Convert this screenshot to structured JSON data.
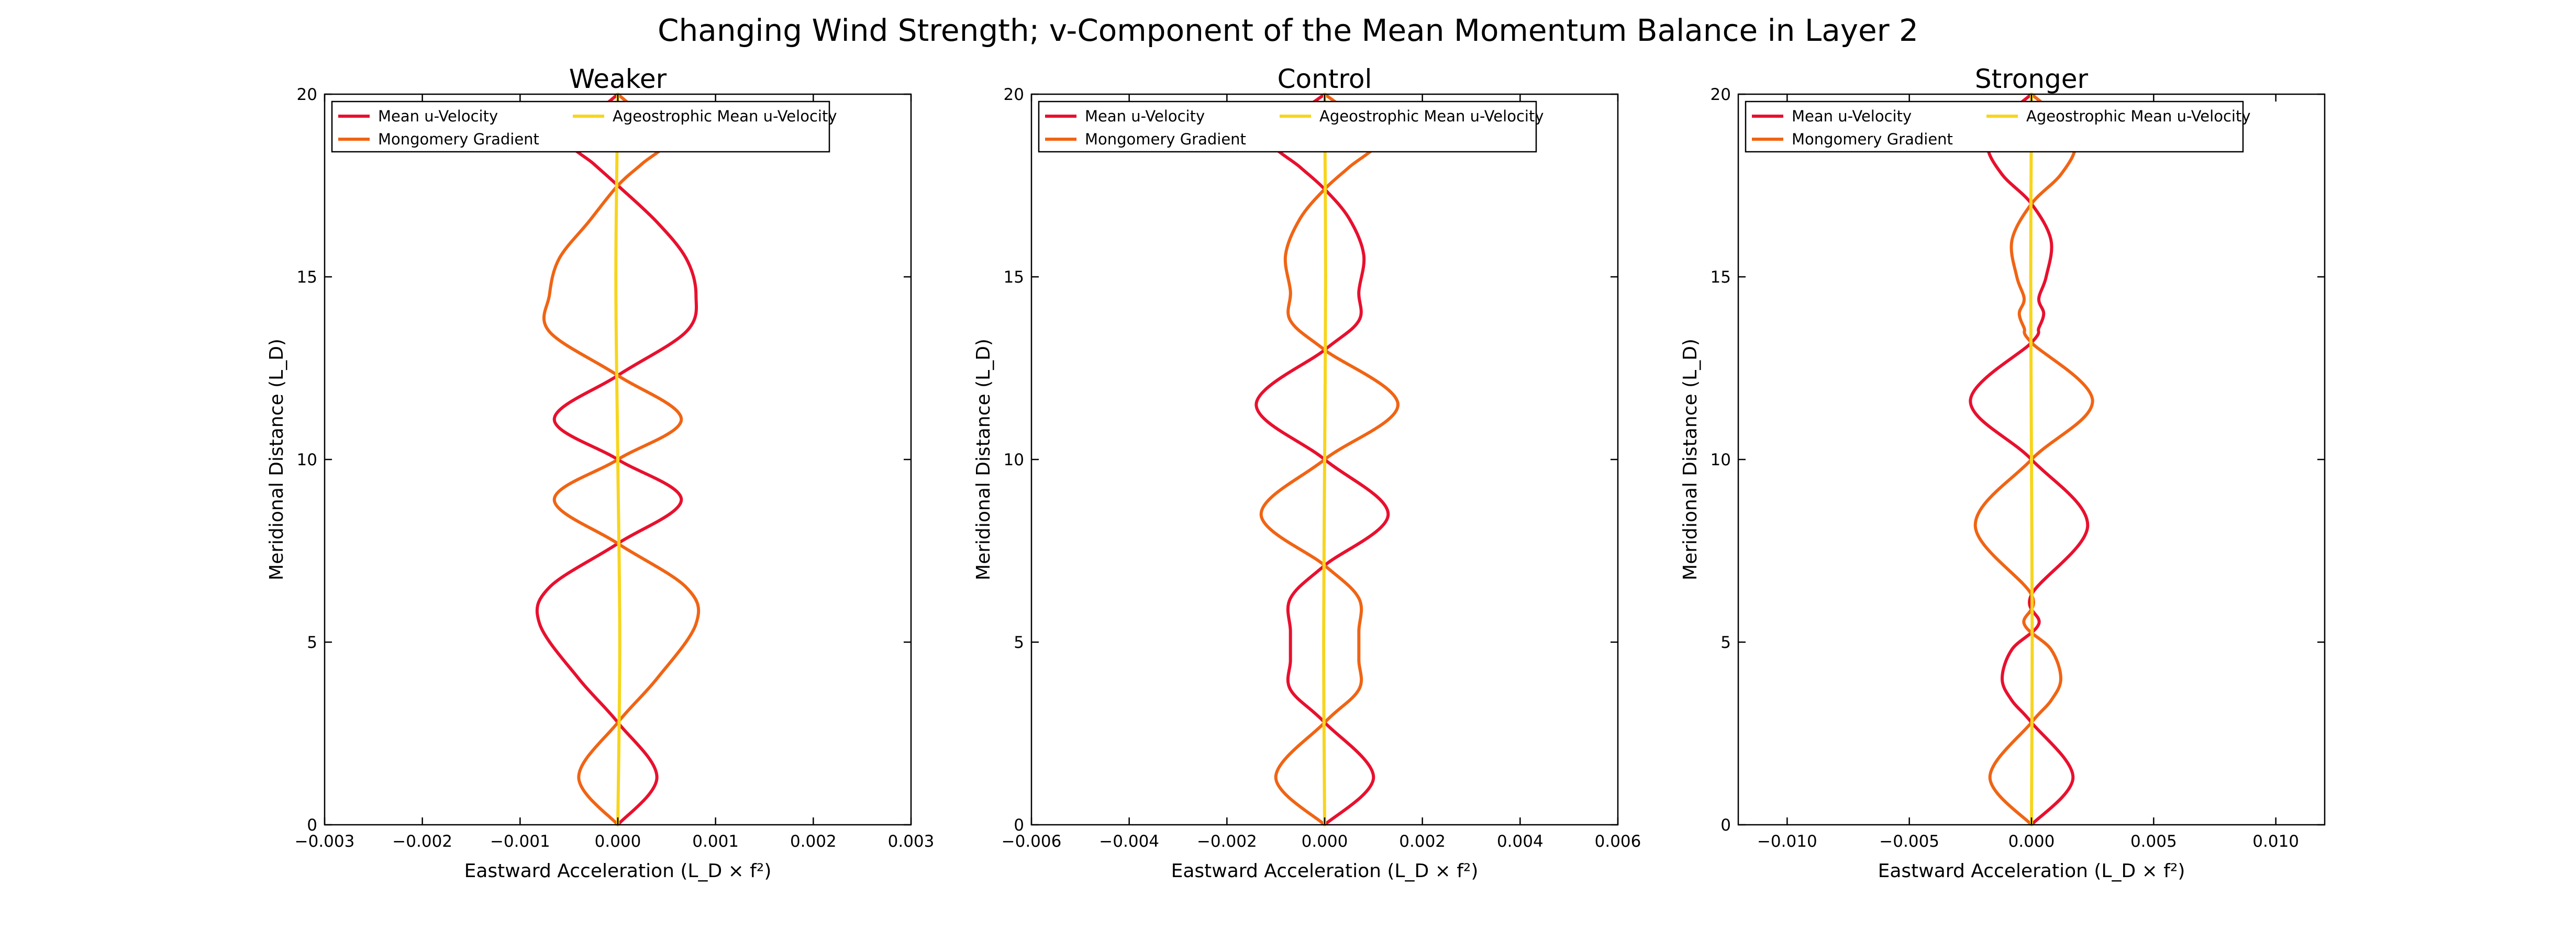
{
  "suptitle": "Changing Wind Strength; v-Component of the Mean Momentum Balance in Layer 2",
  "colors": {
    "mean_u": "#e8102e",
    "montgomery": "#f06414",
    "ageostrophic": "#f7d51d"
  },
  "chart_data": [
    {
      "type": "line",
      "title": "Weaker",
      "xlabel": "Eastward Acceleration (L_D × f²)",
      "ylabel": "Meridional Distance (L_D)",
      "xlim": [
        -0.003,
        0.003
      ],
      "ylim": [
        0,
        20
      ],
      "xticks": [
        "−0.003",
        "−0.002",
        "−0.001",
        "0.000",
        "0.001",
        "0.002",
        "0.003"
      ],
      "yticks": [
        "0",
        "5",
        "10",
        "15",
        "20"
      ],
      "legend": {
        "position": "top-left",
        "columns": 2
      },
      "series": [
        {
          "name": "Mean u-Velocity",
          "color": "#e8102e",
          "y": [
            0,
            1.3,
            2.8,
            4.0,
            5.5,
            6.5,
            7.7,
            8.9,
            10.0,
            11.1,
            12.3,
            13.5,
            14.5,
            15.5,
            16.5,
            17.5,
            18.1,
            18.7,
            19.3,
            20.0
          ],
          "x": [
            0,
            0.0004,
            0,
            -0.0004,
            -0.0008,
            -0.0007,
            0,
            0.00065,
            0,
            -0.00065,
            0,
            0.0007,
            0.0008,
            0.0007,
            0.0004,
            0,
            -0.00025,
            -0.0005,
            -0.0003,
            0
          ]
        },
        {
          "name": "Mongomery Gradient",
          "color": "#f06414",
          "y": [
            0,
            1.3,
            2.8,
            4.0,
            5.5,
            6.5,
            7.7,
            8.9,
            10.0,
            11.1,
            12.3,
            13.5,
            14.5,
            15.5,
            16.5,
            17.5,
            18.1,
            18.7,
            19.3,
            20.0
          ],
          "x": [
            0,
            -0.0004,
            0,
            0.0004,
            0.0008,
            0.0007,
            0,
            -0.00065,
            0,
            0.00065,
            0,
            -0.0007,
            -0.0007,
            -0.0006,
            -0.0003,
            0,
            0.00025,
            0.0005,
            0.0003,
            0
          ]
        },
        {
          "name": "Ageostrophic Mean u-Velocity",
          "color": "#f7d51d",
          "y": [
            0,
            5,
            10,
            15,
            20
          ],
          "x": [
            0,
            2e-05,
            0,
            -2e-05,
            0
          ]
        }
      ]
    },
    {
      "type": "line",
      "title": "Control",
      "xlabel": "Eastward Acceleration (L_D × f²)",
      "ylabel": "Meridional Distance (L_D)",
      "xlim": [
        -0.006,
        0.006
      ],
      "ylim": [
        0,
        20
      ],
      "xticks": [
        "−0.006",
        "−0.004",
        "−0.002",
        "0.000",
        "0.002",
        "0.004",
        "0.006"
      ],
      "yticks": [
        "0",
        "5",
        "10",
        "15",
        "20"
      ],
      "legend": {
        "position": "top-left",
        "columns": 2
      },
      "series": [
        {
          "name": "Mean u-Velocity",
          "color": "#e8102e",
          "y": [
            0,
            1.3,
            2.8,
            3.7,
            4.5,
            5.3,
            6.2,
            7.1,
            8.5,
            10.0,
            11.5,
            13.0,
            13.8,
            14.6,
            15.6,
            16.6,
            17.4,
            18.0,
            18.7,
            19.3,
            20.0
          ],
          "x": [
            0,
            0.001,
            0,
            -0.0007,
            -0.0007,
            -0.0007,
            -0.0007,
            0,
            0.0013,
            0,
            -0.0014,
            0,
            0.0007,
            0.0007,
            0.0008,
            0.0005,
            0,
            -0.0005,
            -0.0011,
            -0.0007,
            0
          ]
        },
        {
          "name": "Mongomery Gradient",
          "color": "#f06414",
          "y": [
            0,
            1.3,
            2.8,
            3.7,
            4.5,
            5.3,
            6.2,
            7.1,
            8.5,
            10.0,
            11.5,
            13.0,
            13.8,
            14.6,
            15.6,
            16.6,
            17.4,
            18.0,
            18.7,
            19.3,
            20.0
          ],
          "x": [
            0,
            -0.001,
            0,
            0.0007,
            0.0007,
            0.0007,
            0.0007,
            0,
            -0.0013,
            0,
            0.0015,
            0,
            -0.0007,
            -0.0007,
            -0.0008,
            -0.0005,
            0,
            0.0005,
            0.0011,
            0.0007,
            0
          ]
        },
        {
          "name": "Ageostrophic Mean u-Velocity",
          "color": "#f7d51d",
          "y": [
            0,
            5,
            10,
            15,
            20
          ],
          "x": [
            0,
            -2e-05,
            0,
            2e-05,
            0
          ]
        }
      ]
    },
    {
      "type": "line",
      "title": "Stronger",
      "xlabel": "Eastward Acceleration (L_D × f²)",
      "ylabel": "Meridional Distance (L_D)",
      "xlim": [
        -0.012,
        0.012
      ],
      "ylim": [
        0,
        20
      ],
      "xticks": [
        "−0.010",
        "−0.005",
        "0.000",
        "0.005",
        "0.010"
      ],
      "ytickvalues_note": "",
      "yticks": [
        "0",
        "5",
        "10",
        "15",
        "20"
      ],
      "legend": {
        "position": "top-left",
        "columns": 2
      },
      "series": [
        {
          "name": "Mean u-Velocity",
          "color": "#e8102e",
          "y": [
            0,
            1.3,
            2.8,
            3.4,
            4.0,
            4.8,
            5.5,
            6.3,
            8.2,
            10.0,
            11.6,
            13.2,
            13.6,
            14.0,
            14.4,
            15.0,
            16.0,
            17.0,
            17.8,
            18.6,
            19.3,
            20.0
          ],
          "x": [
            0,
            0.0017,
            0,
            -0.0008,
            -0.0012,
            -0.0008,
            0.0003,
            0,
            0.0023,
            0,
            -0.0025,
            0,
            0.0003,
            0.0005,
            0.0003,
            0.0006,
            0.0008,
            0,
            -0.0012,
            -0.0018,
            -0.0012,
            0
          ]
        },
        {
          "name": "Mongomery Gradient",
          "color": "#f06414",
          "y": [
            0,
            1.3,
            2.8,
            3.4,
            4.0,
            4.8,
            5.5,
            6.3,
            8.2,
            10.0,
            11.6,
            13.2,
            13.6,
            14.0,
            14.4,
            15.0,
            16.0,
            17.0,
            17.8,
            18.6,
            19.3,
            20.0
          ],
          "x": [
            0,
            -0.0017,
            0,
            0.0008,
            0.0012,
            0.0008,
            -0.0003,
            0,
            -0.0023,
            0,
            0.0025,
            0,
            -0.0003,
            -0.0005,
            -0.0003,
            -0.0006,
            -0.0008,
            0,
            0.0012,
            0.0018,
            0.0012,
            0
          ]
        },
        {
          "name": "Ageostrophic Mean u-Velocity",
          "color": "#f7d51d",
          "y": [
            0,
            5,
            10,
            15,
            20
          ],
          "x": [
            0,
            3e-05,
            0,
            -3e-05,
            0
          ]
        }
      ]
    }
  ]
}
